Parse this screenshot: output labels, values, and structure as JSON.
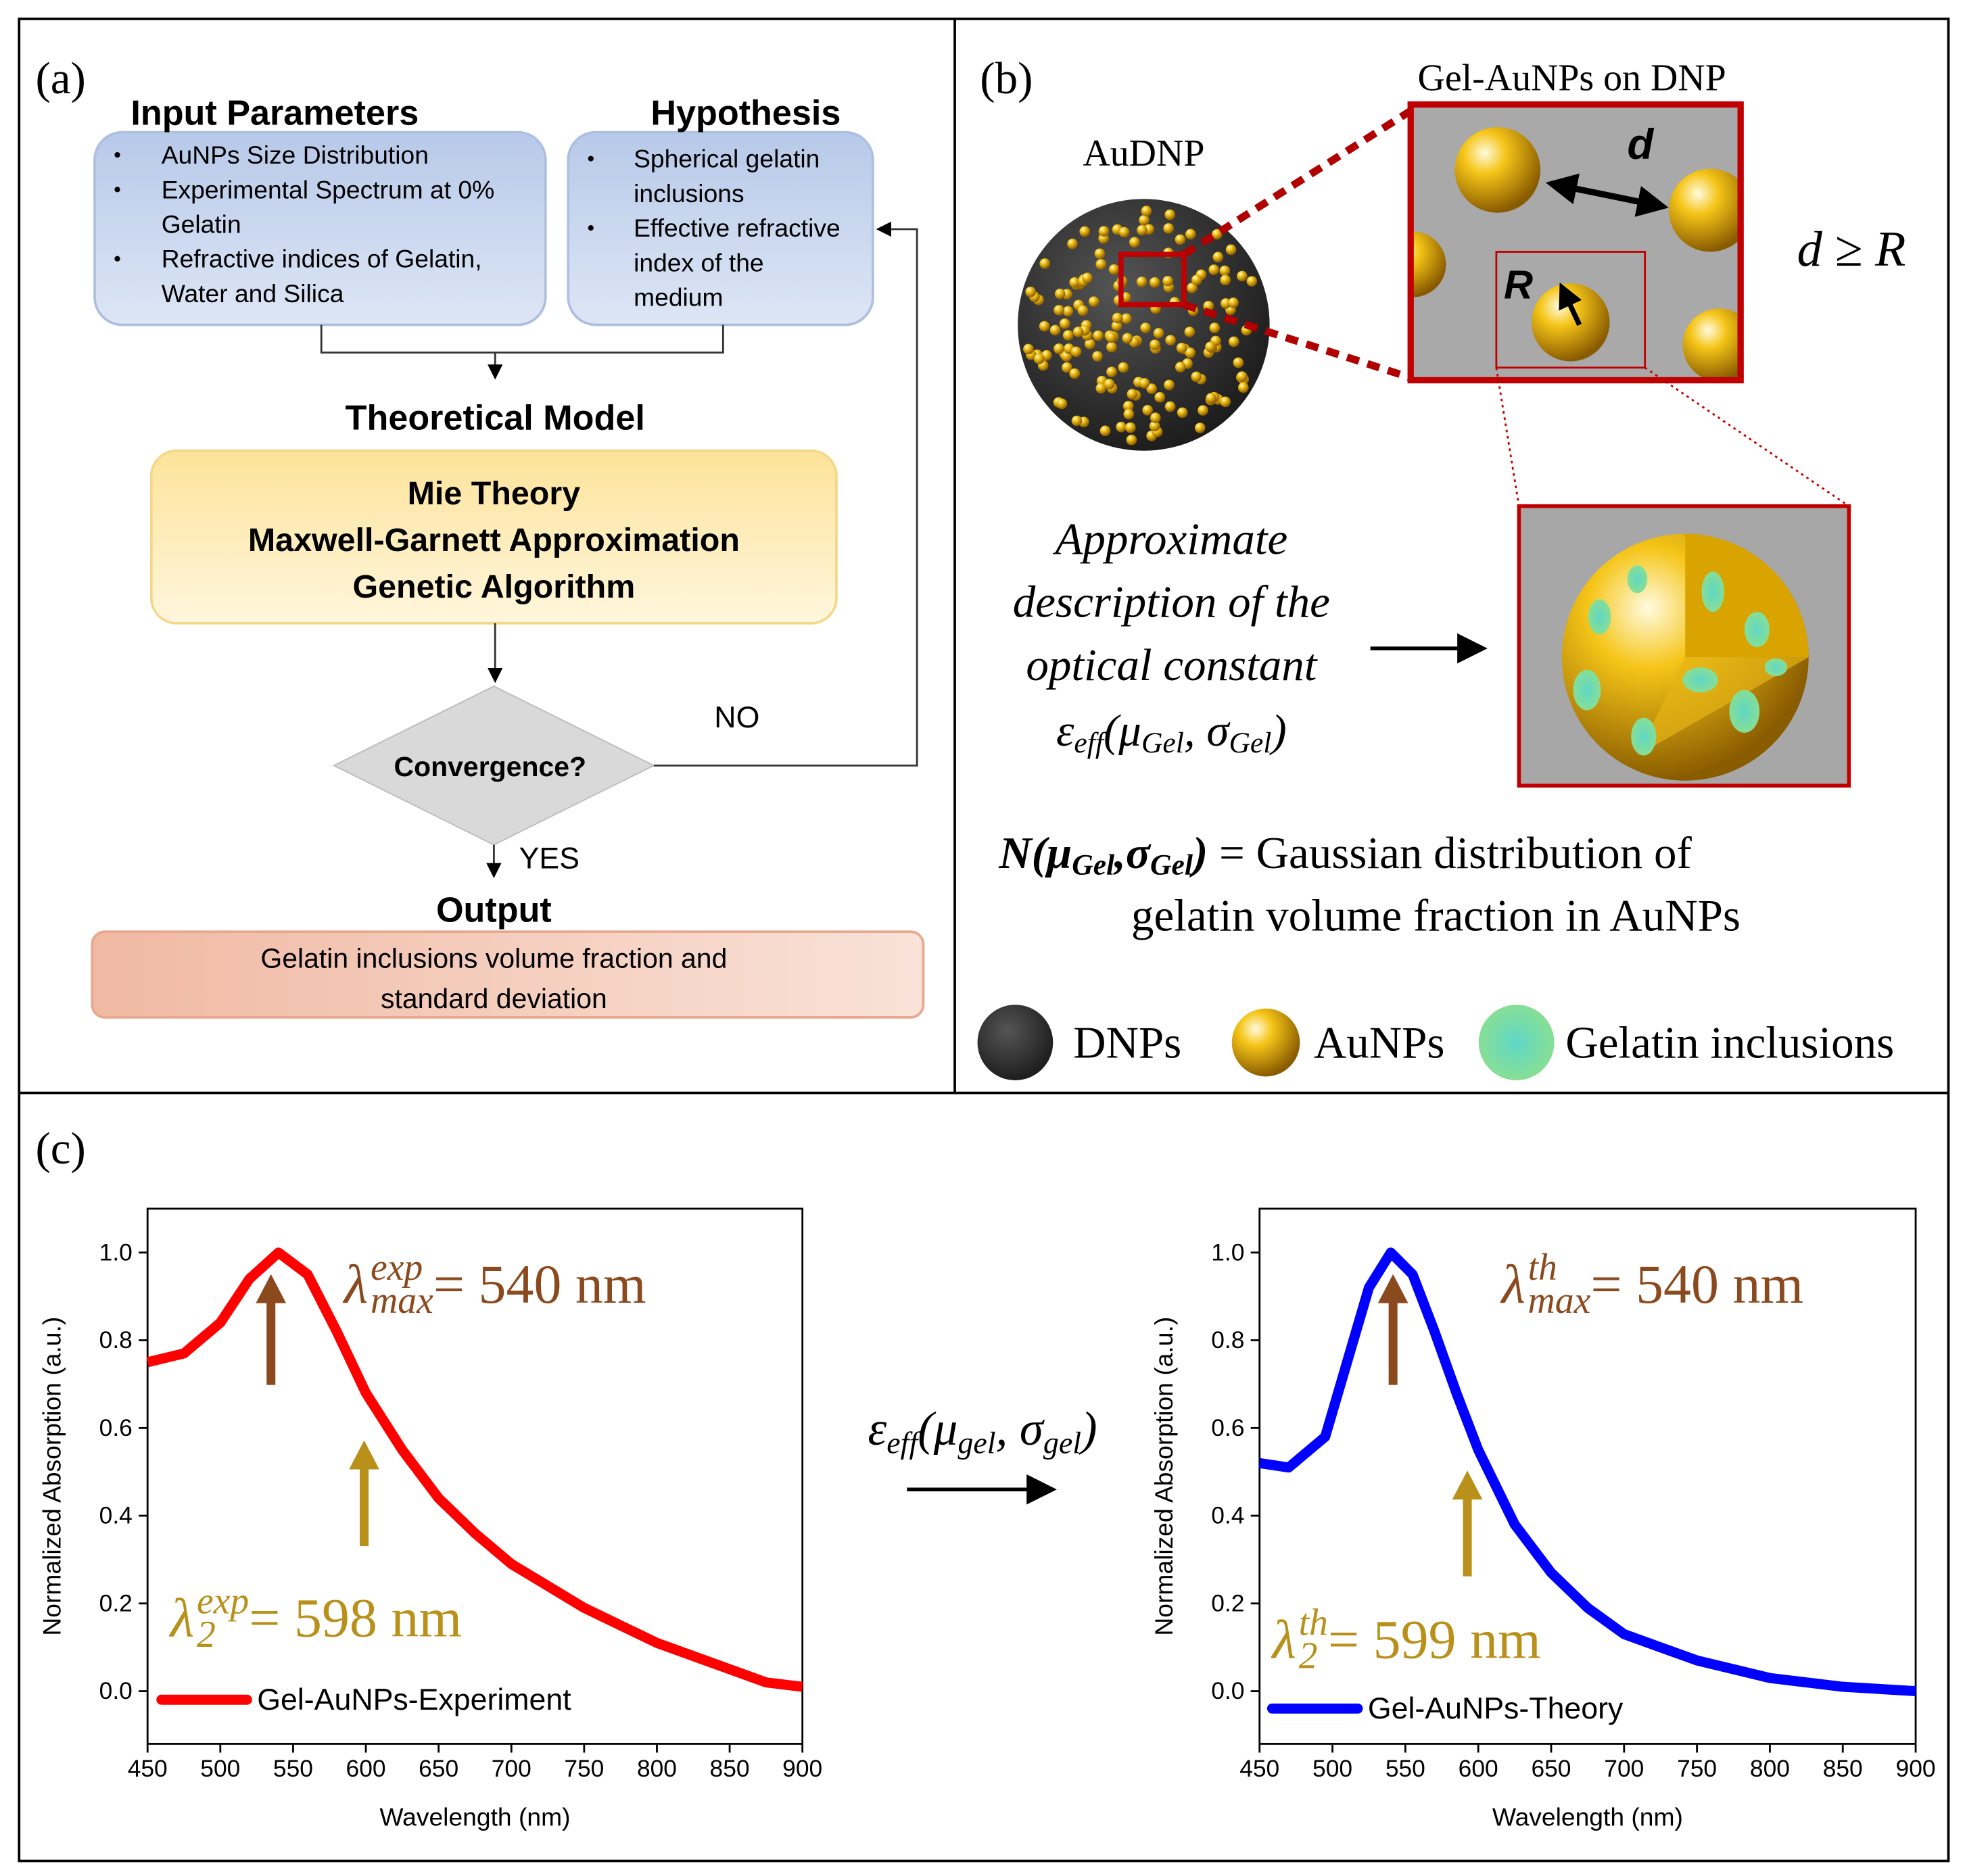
{
  "panel_a": {
    "label": "(a)",
    "input": {
      "title": "Input Parameters",
      "items": [
        [
          "AuNPs Size Distribution"
        ],
        [
          "Experimental Spectrum at 0%",
          "Gelatin"
        ],
        [
          "Refractive indices of Gelatin,",
          "Water and Silica"
        ]
      ]
    },
    "hypothesis": {
      "title": "Hypothesis",
      "items": [
        [
          "Spherical gelatin",
          "inclusions"
        ],
        [
          "Effective refractive",
          "index of the",
          "medium"
        ]
      ]
    },
    "model": {
      "title": "Theoretical Model",
      "lines": [
        "Mie Theory",
        "Maxwell-Garnett Approximation",
        "Genetic Algorithm"
      ]
    },
    "decision": "Convergence?",
    "no": "NO",
    "yes": "YES",
    "output": {
      "title": "Output",
      "lines": [
        "Gelatin inclusions volume fraction and",
        "standard deviation"
      ]
    }
  },
  "panel_b": {
    "label": "(b)",
    "zoom_title": "Gel-AuNPs on DNP",
    "audnp": "AuDNP",
    "d": "d",
    "r": "R",
    "relation": "d ≥ R",
    "description": [
      "Approximate",
      "description of the",
      "optical constant"
    ],
    "eps": [
      "ε",
      "eff",
      "(μ",
      "Gel",
      ", σ",
      "Gel",
      ")"
    ],
    "gauss": [
      "N(μ",
      "Gel",
      ",σ",
      "Gel",
      ")"
    ],
    "gauss_rest": " = Gaussian distribution of",
    "gauss_line2": "gelatin volume fraction in AuNPs",
    "legend": [
      "DNPs",
      "AuNPs",
      "Gelatin inclusions"
    ]
  },
  "panel_c": {
    "label": "(c)",
    "eps": [
      "ε",
      "eff",
      "(μ",
      "gel",
      ", σ",
      "gel",
      ")"
    ]
  },
  "chart_data": [
    {
      "type": "line",
      "xlabel": "Wavelength (nm)",
      "ylabel": "Normalized Absorption (a.u.)",
      "x": [
        450,
        475,
        500,
        520,
        540,
        560,
        580,
        600,
        625,
        650,
        675,
        700,
        725,
        750,
        775,
        800,
        825,
        850,
        875,
        900
      ],
      "series": [
        {
          "name": "Gel-AuNPs-Experiment",
          "color": "#ff0000",
          "values": [
            0.75,
            0.77,
            0.84,
            0.94,
            1.0,
            0.95,
            0.82,
            0.68,
            0.55,
            0.44,
            0.36,
            0.29,
            0.24,
            0.19,
            0.15,
            0.11,
            0.08,
            0.05,
            0.02,
            0.01
          ]
        }
      ],
      "xlim": [
        450,
        900
      ],
      "xticks": [
        450,
        500,
        550,
        600,
        650,
        700,
        750,
        800,
        850,
        900
      ],
      "ylim": [
        -0.12,
        1.1
      ],
      "yticks": [
        {
          "value": 0,
          "label": "0.0"
        },
        0.2,
        0.4,
        0.6,
        0.8,
        {
          "value": 1,
          "label": "1.0"
        }
      ],
      "annotations": [
        {
          "symbol": "λ",
          "sup": "exp",
          "sub": "max",
          "rest": " = 540 nm",
          "color": "#8b4a1e"
        },
        {
          "symbol": "λ",
          "sup": "exp",
          "sub": "2",
          "rest": " = 598 nm",
          "color": "#b8901a"
        }
      ]
    },
    {
      "type": "line",
      "xlabel": "Wavelength (nm)",
      "ylabel": "Normalized Absorption (a.u.)",
      "x": [
        450,
        470,
        495,
        510,
        525,
        540,
        555,
        570,
        585,
        600,
        625,
        650,
        675,
        700,
        725,
        750,
        775,
        800,
        825,
        850,
        875,
        900
      ],
      "series": [
        {
          "name": "Gel-AuNPs-Theory",
          "color": "#0000ff",
          "values": [
            0.52,
            0.51,
            0.58,
            0.75,
            0.92,
            1.0,
            0.95,
            0.82,
            0.68,
            0.55,
            0.38,
            0.27,
            0.19,
            0.13,
            0.1,
            0.07,
            0.05,
            0.03,
            0.02,
            0.01,
            0.005,
            0
          ]
        }
      ],
      "xlim": [
        450,
        900
      ],
      "xticks": [
        450,
        500,
        550,
        600,
        650,
        700,
        750,
        800,
        850,
        900
      ],
      "ylim": [
        -0.12,
        1.1
      ],
      "yticks": [
        {
          "value": 0,
          "label": "0.0"
        },
        0.2,
        0.4,
        0.6,
        0.8,
        {
          "value": 1,
          "label": "1.0"
        }
      ],
      "annotations": [
        {
          "symbol": "λ",
          "sup": "th",
          "sub": "max",
          "rest": " = 540 nm",
          "color": "#8b4a1e"
        },
        {
          "symbol": "λ",
          "sup": "th",
          "sub": "2",
          "rest": " = 599 nm",
          "color": "#b8901a"
        }
      ]
    }
  ]
}
